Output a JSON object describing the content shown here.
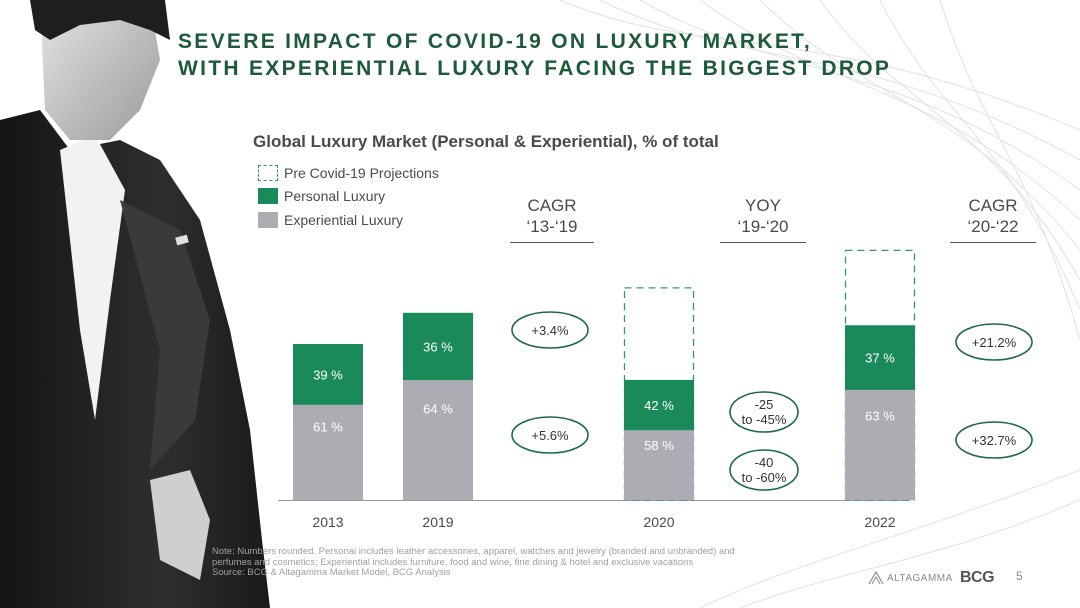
{
  "header": {
    "title_line1": "SEVERE IMPACT OF COVID-19 ON LUXURY MARKET,",
    "title_line2": "WITH EXPERIENTIAL LUXURY FACING THE BIGGEST DROP"
  },
  "colors": {
    "personal": "#1a8a5a",
    "experiential": "#aeacb3",
    "projection": "#2e9a65",
    "title": "#1d5a3c",
    "bubble": "#1d6b45"
  },
  "chart_data": {
    "type": "bar",
    "stacked": true,
    "title": "Global Luxury Market (Personal & Experiential), % of total",
    "categories": [
      "2013",
      "2019",
      "2020",
      "2022"
    ],
    "legend": [
      "Pre Covid-19 Projections",
      "Personal Luxury",
      "Experiential Luxury"
    ],
    "series": [
      {
        "name": "Experiential Luxury",
        "values": [
          61,
          64,
          58,
          63
        ],
        "labels": [
          "61 %",
          "64 %",
          "58 %",
          "63 %"
        ]
      },
      {
        "name": "Personal Luxury",
        "values": [
          39,
          36,
          42,
          37
        ],
        "labels": [
          "39 %",
          "36 %",
          "42 %",
          "37 %"
        ]
      }
    ],
    "bar_total_relative": [
      1.0,
      1.2,
      0.77,
      1.12
    ],
    "projection_total_relative": [
      null,
      null,
      1.36,
      1.6
    ],
    "growth_columns": [
      {
        "header_line1": "CAGR",
        "header_line2": "‘13-‘19",
        "personal": "+3.4%",
        "experiential": "+5.6%"
      },
      {
        "header_line1": "YOY",
        "header_line2": "‘19-‘20",
        "personal": "-25\nto -45%",
        "experiential": "-40\nto -60%"
      },
      {
        "header_line1": "CAGR",
        "header_line2": "‘20-‘22",
        "personal": "+21.2%",
        "experiential": "+32.7%"
      }
    ]
  },
  "footer": {
    "note_line1": "Note: Numbers rounded. Personal includes leather accessories, apparel, watches and jewelry (branded and unbranded) and",
    "note_line2": "perfumes and cosmetics; Experiential includes furniture, food and wine, fine dining & hotel and exclusive vacations",
    "source": "Source: BCG & Altagamma Market Model, BCG Analysis",
    "page_number": "5",
    "logo_altagamma": "ALTAGAMMA",
    "logo_bcg": "BCG"
  }
}
